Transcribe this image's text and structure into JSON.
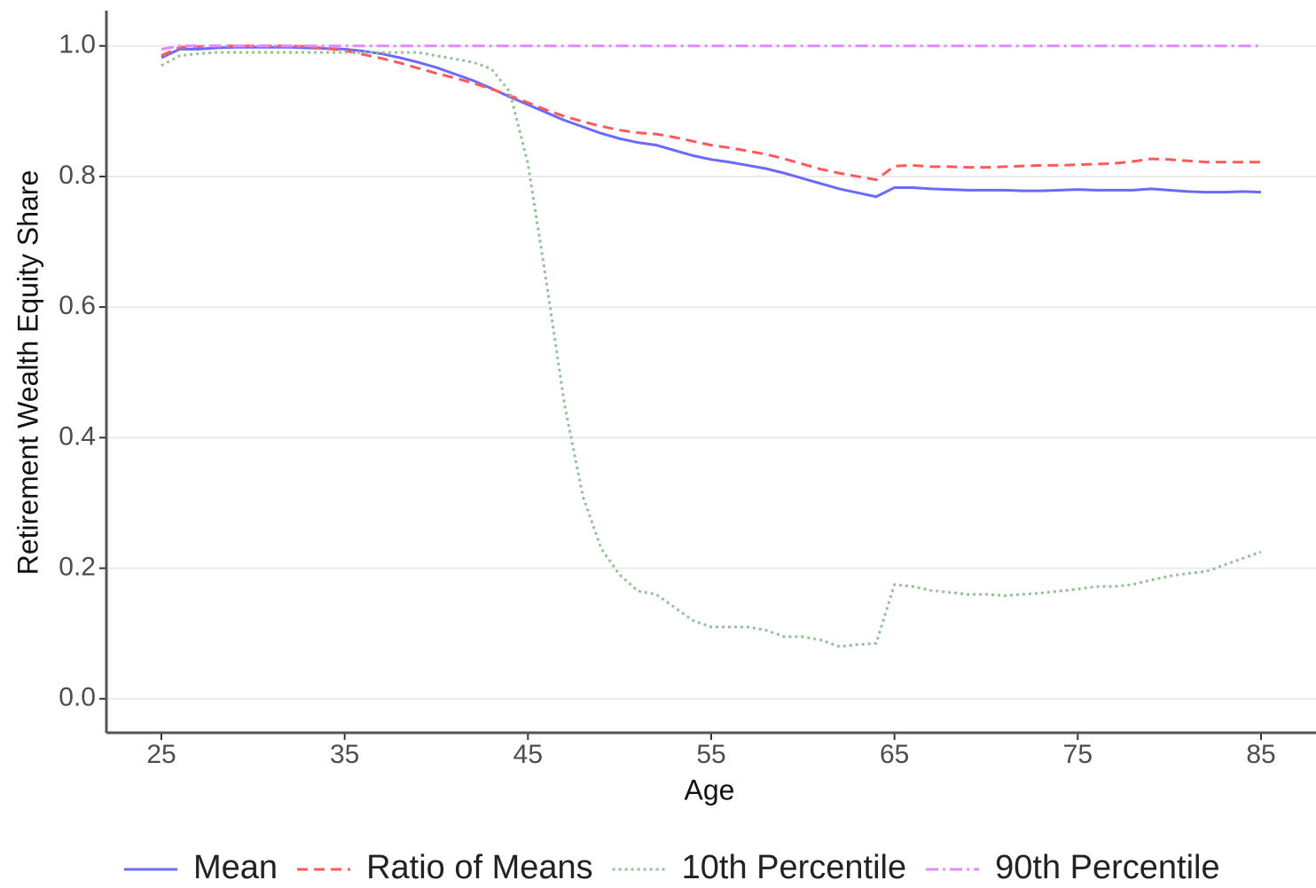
{
  "chart_data": {
    "type": "line",
    "xlabel": "Age",
    "ylabel": "Retirement Wealth Equity Share",
    "x": [
      25,
      26,
      27,
      28,
      29,
      30,
      31,
      32,
      33,
      34,
      35,
      36,
      37,
      38,
      39,
      40,
      41,
      42,
      43,
      44,
      45,
      46,
      47,
      48,
      49,
      50,
      51,
      52,
      53,
      54,
      55,
      56,
      57,
      58,
      59,
      60,
      61,
      62,
      63,
      64,
      65,
      66,
      67,
      68,
      69,
      70,
      71,
      72,
      73,
      74,
      75,
      76,
      77,
      78,
      79,
      80,
      81,
      82,
      83,
      84,
      85
    ],
    "series": [
      {
        "name": "Mean",
        "color": "#6a6aff",
        "dash": "solid",
        "values": [
          0.982,
          0.995,
          0.995,
          0.997,
          0.998,
          0.998,
          0.998,
          0.998,
          0.997,
          0.996,
          0.995,
          0.992,
          0.988,
          0.982,
          0.975,
          0.967,
          0.957,
          0.947,
          0.935,
          0.922,
          0.91,
          0.898,
          0.886,
          0.876,
          0.866,
          0.858,
          0.852,
          0.848,
          0.84,
          0.832,
          0.826,
          0.822,
          0.817,
          0.812,
          0.805,
          0.797,
          0.789,
          0.781,
          0.775,
          0.769,
          0.783,
          0.783,
          0.781,
          0.78,
          0.779,
          0.779,
          0.779,
          0.778,
          0.778,
          0.779,
          0.78,
          0.779,
          0.779,
          0.779,
          0.781,
          0.779,
          0.777,
          0.776,
          0.776,
          0.777,
          0.776
        ]
      },
      {
        "name": "Ratio of Means",
        "color": "#ff5a5a",
        "dash": "dashed",
        "values": [
          0.985,
          0.998,
          0.999,
          1.0,
          1.0,
          1.0,
          1.0,
          1.0,
          0.999,
          0.996,
          0.993,
          0.987,
          0.981,
          0.974,
          0.966,
          0.958,
          0.951,
          0.943,
          0.934,
          0.924,
          0.913,
          0.902,
          0.892,
          0.884,
          0.877,
          0.871,
          0.867,
          0.865,
          0.86,
          0.854,
          0.848,
          0.844,
          0.839,
          0.834,
          0.827,
          0.819,
          0.811,
          0.805,
          0.8,
          0.795,
          0.816,
          0.817,
          0.815,
          0.815,
          0.814,
          0.814,
          0.815,
          0.816,
          0.817,
          0.817,
          0.818,
          0.819,
          0.82,
          0.823,
          0.827,
          0.826,
          0.824,
          0.822,
          0.822,
          0.822,
          0.822
        ]
      },
      {
        "name": "10th Percentile",
        "color": "#98c098",
        "dash": "dotted",
        "values": [
          0.97,
          0.985,
          0.988,
          0.99,
          0.99,
          0.99,
          0.99,
          0.99,
          0.99,
          0.99,
          0.99,
          0.99,
          0.99,
          0.99,
          0.99,
          0.985,
          0.98,
          0.975,
          0.965,
          0.93,
          0.82,
          0.64,
          0.45,
          0.31,
          0.23,
          0.19,
          0.165,
          0.16,
          0.14,
          0.12,
          0.11,
          0.11,
          0.11,
          0.105,
          0.095,
          0.095,
          0.09,
          0.08,
          0.083,
          0.085,
          0.175,
          0.172,
          0.166,
          0.163,
          0.16,
          0.16,
          0.158,
          0.16,
          0.162,
          0.165,
          0.168,
          0.172,
          0.172,
          0.175,
          0.182,
          0.188,
          0.192,
          0.195,
          0.205,
          0.215,
          0.225
        ]
      },
      {
        "name": "90th Percentile",
        "color": "#e08aff",
        "dash": "dashdot",
        "values": [
          0.995,
          1.0,
          1.0,
          1.0,
          1.0,
          1.0,
          1.0,
          1.0,
          1.0,
          1.0,
          1.0,
          1.0,
          1.0,
          1.0,
          1.0,
          1.0,
          1.0,
          1.0,
          1.0,
          1.0,
          1.0,
          1.0,
          1.0,
          1.0,
          1.0,
          1.0,
          1.0,
          1.0,
          1.0,
          1.0,
          1.0,
          1.0,
          1.0,
          1.0,
          1.0,
          1.0,
          1.0,
          1.0,
          1.0,
          1.0,
          1.0,
          1.0,
          1.0,
          1.0,
          1.0,
          1.0,
          1.0,
          1.0,
          1.0,
          1.0,
          1.0,
          1.0,
          1.0,
          1.0,
          1.0,
          1.0,
          1.0,
          1.0,
          1.0,
          1.0,
          1.0
        ]
      }
    ],
    "xlim": [
      22,
      88
    ],
    "ylim": [
      -0.052,
      1.054
    ],
    "xticks": [
      25,
      35,
      45,
      55,
      65,
      75,
      85
    ],
    "yticks": [
      {
        "value": 0,
        "label": "0.0"
      },
      0.2,
      0.4,
      0.6,
      0.8,
      {
        "value": 1,
        "label": "1.0"
      }
    ],
    "grid": true,
    "legend": "bottom"
  }
}
